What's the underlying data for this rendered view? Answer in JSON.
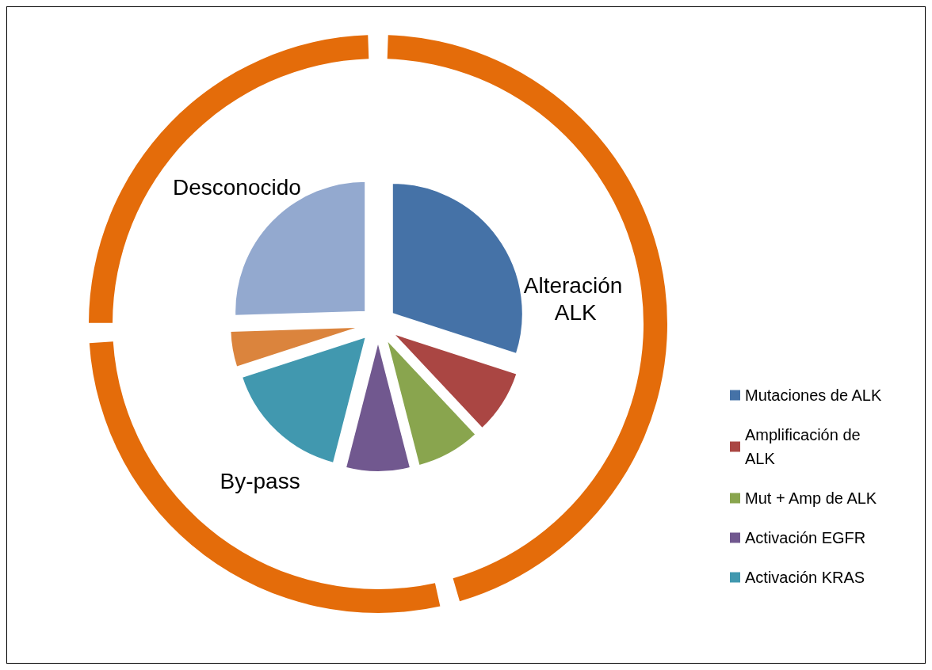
{
  "chart_data": [
    {
      "type": "pie",
      "legend": "right",
      "categories": [
        "Mutaciones de ALK",
        "Amplificación de ALK",
        "Mut + Amp de ALK",
        "Activación EGFR",
        "Activación KRAS",
        null,
        null
      ],
      "values": [
        30,
        8,
        8,
        8,
        16,
        4.5,
        25.5
      ],
      "colors": [
        "#4572a7",
        "#aa4643",
        "#89a54e",
        "#71588f",
        "#4198af",
        "#db843d",
        "#93a9cf"
      ]
    },
    {
      "type": "donut",
      "categories": [
        "Alteración ALK",
        "By-pass",
        "Desconocido"
      ],
      "values": [
        46,
        28.5,
        25.5
      ],
      "colors": [
        "#e46c0a",
        "#e46c0a",
        "#e46c0a"
      ]
    }
  ]
}
